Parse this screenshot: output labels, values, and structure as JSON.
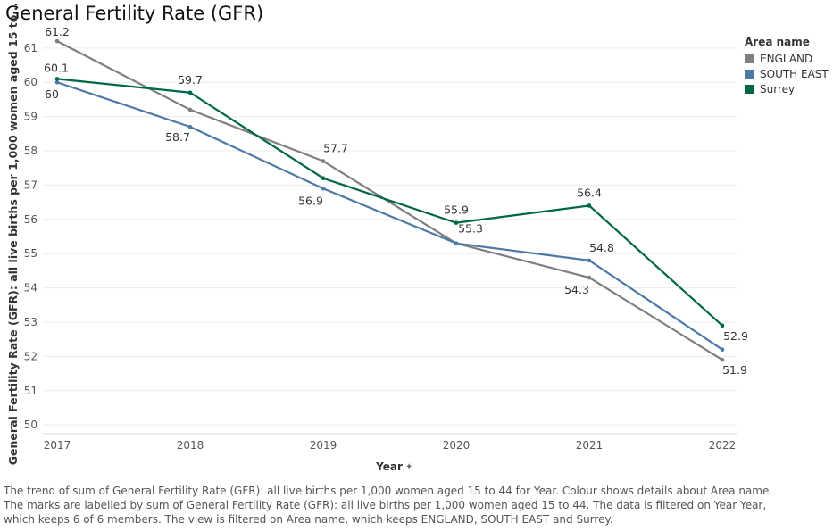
{
  "title": "General Fertility Rate (GFR)",
  "chart_data": {
    "type": "line",
    "title": "General Fertility Rate (GFR)",
    "xlabel": "Year",
    "ylabel": "General Fertility Rate (GFR):  all live births per 1,000 women aged 15 to ..",
    "x": [
      "2017",
      "2018",
      "2019",
      "2020",
      "2021",
      "2022"
    ],
    "ylim": [
      50,
      61
    ],
    "yticks": [
      50,
      51,
      52,
      53,
      54,
      55,
      56,
      57,
      58,
      59,
      60,
      61
    ],
    "grid": true,
    "legend_position": "right",
    "series": [
      {
        "name": "ENGLAND",
        "color": "#7f7f7f",
        "values": [
          61.2,
          59.2,
          57.7,
          55.3,
          54.3,
          51.9
        ],
        "labels": [
          "61.2",
          "",
          "57.7",
          "55.3",
          "54.3",
          "51.9"
        ]
      },
      {
        "name": "SOUTH EAST",
        "color": "#4e79a7",
        "values": [
          60.0,
          58.7,
          56.9,
          55.3,
          54.8,
          52.2
        ],
        "labels": [
          "60",
          "58.7",
          "56.9",
          "",
          "54.8",
          ""
        ]
      },
      {
        "name": "Surrey",
        "color": "#00664a",
        "values": [
          60.1,
          59.7,
          57.2,
          55.9,
          56.4,
          52.9
        ],
        "labels": [
          "60.1",
          "59.7",
          "",
          "55.9",
          "56.4",
          "52.9"
        ]
      }
    ]
  },
  "legend": {
    "title": "Area name",
    "items": [
      {
        "label": "ENGLAND",
        "color": "#7f7f7f"
      },
      {
        "label": "SOUTH EAST",
        "color": "#4e79a7"
      },
      {
        "label": "Surrey",
        "color": "#00664a"
      }
    ]
  },
  "x_axis_label": "Year",
  "x_axis_icon": "pin-icon",
  "caption": "The trend of sum of General Fertility Rate (GFR):  all live births per 1,000 women aged 15 to 44 for Year.  Colour shows details about Area name.  The marks are labelled by sum of General Fertility Rate (GFR):  all live births per 1,000 women aged 15 to 44. The data is filtered on Year Year, which keeps 6 of 6 members. The view is filtered on Area name, which keeps ENGLAND, SOUTH EAST and Surrey."
}
